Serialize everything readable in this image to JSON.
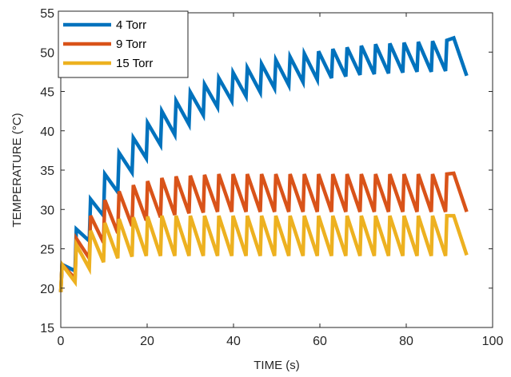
{
  "chart_data": {
    "type": "line",
    "title": "",
    "xlabel": "TIME (s)",
    "ylabel": "TEMPERATURE (°C)",
    "xlim": [
      0,
      100
    ],
    "ylim": [
      15,
      55
    ],
    "xticks": [
      0,
      20,
      40,
      60,
      80,
      100
    ],
    "yticks": [
      15,
      20,
      25,
      30,
      35,
      40,
      45,
      50,
      55
    ],
    "grid": false,
    "legend_position": "top-left",
    "series": [
      {
        "name": "4 Torr",
        "color": "#0072BD",
        "x": [
          0,
          0.3,
          3.3,
          3.6,
          6.6,
          6.9,
          9.9,
          10.2,
          13.2,
          13.5,
          16.5,
          16.8,
          19.8,
          20.1,
          23.1,
          23.4,
          26.4,
          26.7,
          29.7,
          30.0,
          33.0,
          33.3,
          36.3,
          36.6,
          39.6,
          39.9,
          42.9,
          43.2,
          46.2,
          46.5,
          49.5,
          49.8,
          52.8,
          53.1,
          56.1,
          56.4,
          59.4,
          59.7,
          62.7,
          63.0,
          66.0,
          66.3,
          69.3,
          69.6,
          72.6,
          72.9,
          75.9,
          76.2,
          79.2,
          79.5,
          82.5,
          82.8,
          85.8,
          86.1,
          89.1,
          89.4,
          91.0,
          94.0
        ],
        "values": [
          19.5,
          23.0,
          22.2,
          27.5,
          26.0,
          31.3,
          29.2,
          34.5,
          32.2,
          37.2,
          34.7,
          39.1,
          36.5,
          41.0,
          38.2,
          42.5,
          39.5,
          43.8,
          40.8,
          44.9,
          42.0,
          45.9,
          43.0,
          46.7,
          43.8,
          47.4,
          44.4,
          48.0,
          44.9,
          48.5,
          45.4,
          49.0,
          45.8,
          49.4,
          46.2,
          49.8,
          46.5,
          50.1,
          46.7,
          50.4,
          46.9,
          50.6,
          47.1,
          50.8,
          47.2,
          51.0,
          47.3,
          51.1,
          47.4,
          51.2,
          47.5,
          51.3,
          47.5,
          51.4,
          47.6,
          51.5,
          51.8,
          47.0
        ]
      },
      {
        "name": "9 Torr",
        "color": "#D95319",
        "x": [
          0,
          0.3,
          3.3,
          3.6,
          6.6,
          6.9,
          9.9,
          10.2,
          13.2,
          13.5,
          16.5,
          16.8,
          19.8,
          20.1,
          23.1,
          23.4,
          26.4,
          26.7,
          29.7,
          30.0,
          33.0,
          33.3,
          36.3,
          36.6,
          39.6,
          39.9,
          42.9,
          43.2,
          46.2,
          46.5,
          49.5,
          49.8,
          52.8,
          53.1,
          56.1,
          56.4,
          59.4,
          59.7,
          62.7,
          63.0,
          66.0,
          66.3,
          69.3,
          69.6,
          72.6,
          72.9,
          75.9,
          76.2,
          79.2,
          79.5,
          82.5,
          82.8,
          85.8,
          86.1,
          89.1,
          89.4,
          91.0,
          94.0
        ],
        "values": [
          19.5,
          23.0,
          21.2,
          26.3,
          23.8,
          29.2,
          25.8,
          31.2,
          27.0,
          32.3,
          27.9,
          33.1,
          28.6,
          33.6,
          29.0,
          34.0,
          29.3,
          34.2,
          29.5,
          34.3,
          29.6,
          34.4,
          29.7,
          34.5,
          29.7,
          34.5,
          29.7,
          34.5,
          29.7,
          34.5,
          29.7,
          34.5,
          29.7,
          34.5,
          29.7,
          34.5,
          29.7,
          34.5,
          29.7,
          34.5,
          29.7,
          34.5,
          29.7,
          34.5,
          29.7,
          34.5,
          29.7,
          34.5,
          29.7,
          34.5,
          29.7,
          34.5,
          29.7,
          34.5,
          29.7,
          34.5,
          34.6,
          29.7
        ]
      },
      {
        "name": "15 Torr",
        "color": "#EDB120",
        "x": [
          0,
          0.3,
          3.3,
          3.6,
          6.6,
          6.9,
          9.9,
          10.2,
          13.2,
          13.5,
          16.5,
          16.8,
          19.8,
          20.1,
          23.1,
          23.4,
          26.4,
          26.7,
          29.7,
          30.0,
          33.0,
          33.3,
          36.3,
          36.6,
          39.6,
          39.9,
          42.9,
          43.2,
          46.2,
          46.5,
          49.5,
          49.8,
          52.8,
          53.1,
          56.1,
          56.4,
          59.4,
          59.7,
          62.7,
          63.0,
          66.0,
          66.3,
          69.3,
          69.6,
          72.6,
          72.9,
          75.9,
          76.2,
          79.2,
          79.5,
          82.5,
          82.8,
          85.8,
          86.1,
          89.1,
          89.4,
          91.0,
          94.0
        ],
        "values": [
          19.5,
          23.0,
          20.8,
          25.5,
          22.5,
          27.3,
          23.3,
          28.3,
          23.8,
          28.8,
          24.0,
          29.0,
          24.1,
          29.1,
          24.1,
          29.2,
          24.1,
          29.2,
          24.1,
          29.2,
          24.1,
          29.2,
          24.1,
          29.2,
          24.1,
          29.2,
          24.1,
          29.2,
          24.1,
          29.2,
          24.1,
          29.2,
          24.1,
          29.2,
          24.1,
          29.2,
          24.1,
          29.2,
          24.1,
          29.2,
          24.1,
          29.2,
          24.1,
          29.2,
          24.1,
          29.2,
          24.1,
          29.2,
          24.1,
          29.2,
          24.1,
          29.2,
          24.1,
          29.2,
          24.1,
          29.2,
          29.2,
          24.2
        ]
      }
    ]
  }
}
